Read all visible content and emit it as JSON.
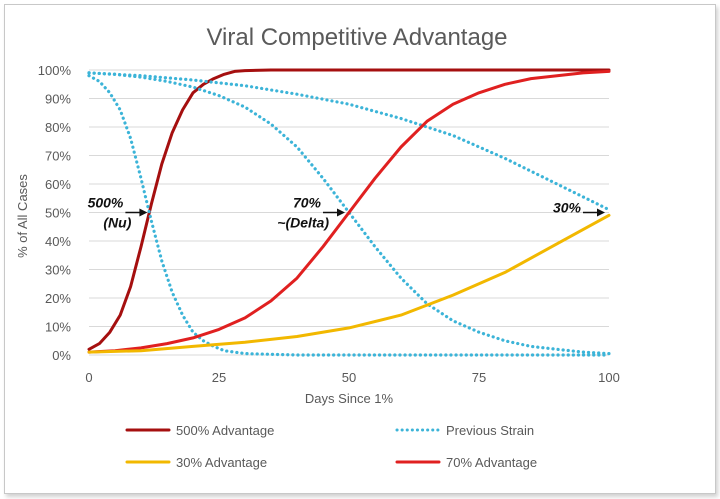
{
  "chart_data": {
    "type": "line",
    "title": "Viral Competitive Advantage",
    "xlabel": "Days Since 1%",
    "ylabel": "% of All Cases",
    "xlim": [
      0,
      100
    ],
    "ylim": [
      0,
      100
    ],
    "x_ticks": [
      0,
      25,
      50,
      75,
      100
    ],
    "y_ticks": [
      0,
      10,
      20,
      30,
      40,
      50,
      60,
      70,
      80,
      90,
      100
    ],
    "y_tick_suffix": "%",
    "grid": "horizontal",
    "legend_position": "bottom",
    "series": [
      {
        "name": "500% Advantage",
        "color": "#a50f0f",
        "style": "solid",
        "x": [
          0,
          2,
          4,
          6,
          8,
          10,
          12,
          14,
          16,
          18,
          20,
          22,
          24,
          26,
          28,
          30,
          35,
          40,
          50,
          60,
          70,
          80,
          90,
          100
        ],
        "y": [
          2,
          4,
          8,
          14,
          24,
          38,
          53,
          67,
          78,
          86,
          92,
          95,
          97,
          98.5,
          99.5,
          99.8,
          100,
          100,
          100,
          100,
          100,
          100,
          100,
          100
        ]
      },
      {
        "name": "Previous Strain",
        "color": "#3cb4d8",
        "style": "dotted",
        "x": [
          0,
          2,
          4,
          6,
          8,
          10,
          12,
          14,
          16,
          18,
          20,
          22,
          24,
          26,
          30,
          40,
          100
        ],
        "y": [
          98,
          96,
          92,
          86,
          76,
          62,
          47,
          33,
          22,
          14,
          8,
          5,
          3,
          1.5,
          0.5,
          0,
          0
        ]
      },
      {
        "name": "Previous Strain",
        "color": "#3cb4d8",
        "style": "dotted",
        "x": [
          0,
          5,
          10,
          15,
          20,
          25,
          30,
          35,
          40,
          45,
          50,
          55,
          60,
          65,
          70,
          75,
          80,
          85,
          90,
          95,
          100
        ],
        "y": [
          99,
          98.5,
          97.5,
          96,
          94,
          91,
          87,
          81,
          73,
          62,
          50,
          38,
          27,
          18,
          12,
          8,
          5,
          3,
          2,
          1,
          0.5
        ]
      },
      {
        "name": "Previous Strain",
        "color": "#3cb4d8",
        "style": "dotted",
        "x": [
          0,
          10,
          20,
          30,
          40,
          50,
          60,
          70,
          80,
          90,
          100
        ],
        "y": [
          99,
          98,
          96.5,
          94.5,
          91.5,
          88,
          83,
          77,
          69,
          60,
          51
        ]
      },
      {
        "name": "70% Advantage",
        "color": "#e02020",
        "style": "solid",
        "x": [
          0,
          5,
          10,
          15,
          20,
          25,
          30,
          35,
          40,
          45,
          50,
          55,
          60,
          65,
          70,
          75,
          80,
          85,
          90,
          95,
          100
        ],
        "y": [
          1,
          1.5,
          2.5,
          4,
          6,
          9,
          13,
          19,
          27,
          38,
          50,
          62,
          73,
          82,
          88,
          92,
          95,
          97,
          98,
          99,
          99.5
        ]
      },
      {
        "name": "30% Advantage",
        "color": "#f2b800",
        "style": "solid",
        "x": [
          0,
          10,
          20,
          30,
          40,
          50,
          60,
          70,
          80,
          90,
          100
        ],
        "y": [
          1,
          1.5,
          3,
          4.5,
          6.5,
          9.5,
          14,
          21,
          29,
          39,
          49
        ]
      }
    ],
    "annotations": [
      {
        "lines": [
          "500%",
          "(Nu)"
        ],
        "x": 12,
        "y": 50
      },
      {
        "lines": [
          "70%",
          "~(Delta)"
        ],
        "x": 50,
        "y": 50
      },
      {
        "lines": [
          "30%"
        ],
        "x": 100,
        "y": 50
      }
    ],
    "legend": [
      {
        "name": "500% Advantage",
        "color": "#a50f0f",
        "style": "solid"
      },
      {
        "name": "Previous Strain",
        "color": "#3cb4d8",
        "style": "dotted"
      },
      {
        "name": "30% Advantage",
        "color": "#f2b800",
        "style": "solid"
      },
      {
        "name": "70% Advantage",
        "color": "#e02020",
        "style": "solid"
      }
    ]
  }
}
